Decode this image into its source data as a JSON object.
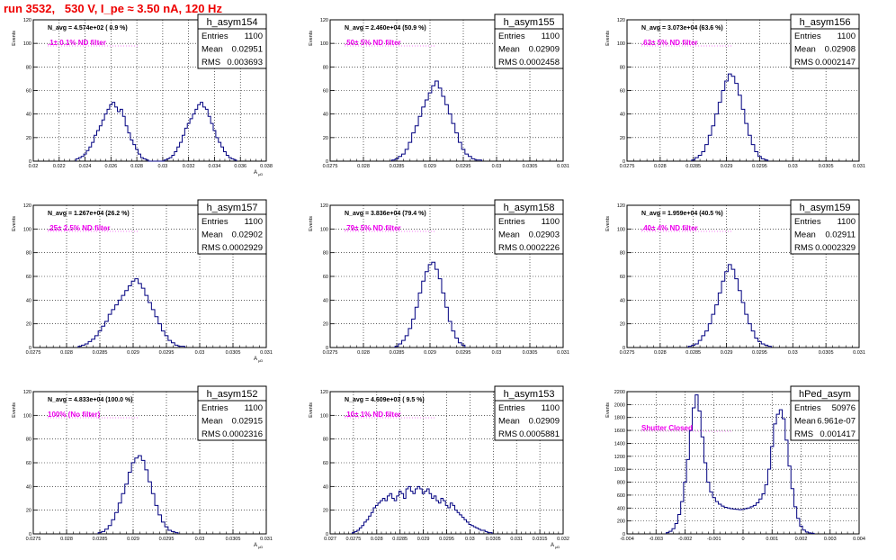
{
  "page_title": "run 3532,   530 V, I_pe ≈ 3.50 nA, 120 Hz",
  "colors": {
    "title": "#ee0000",
    "hist_line": "#000080",
    "annotation": "#ee00ee",
    "frame": "#000000",
    "grid": "#000000"
  },
  "stats_labels": {
    "entries": "Entries",
    "mean": "Mean",
    "rms": "RMS"
  },
  "chart_data": [
    {
      "type": "histogram",
      "name": "h_asym154",
      "navg": "N_avg = 4.574e+02 ( 0.9 %)",
      "annotation": ".1± 0.1% ND filter",
      "entries": "1100",
      "mean": "0.02951",
      "rms": "0.003693",
      "ylabel": "Events",
      "xlabel": "A_{μD}",
      "xlim": [
        0.02,
        0.038
      ],
      "ylim": [
        0,
        120
      ],
      "xticks": [
        0.02,
        0.022,
        0.024,
        0.026,
        0.028,
        0.03,
        0.032,
        0.034,
        0.036,
        0.038
      ],
      "xtick_labels": [
        "0.02",
        "0.022",
        "0.024",
        "0.026",
        "0.028",
        "0.03",
        "0.032",
        "0.034",
        "0.036",
        "0.038"
      ],
      "yticks": [
        0,
        20,
        40,
        60,
        80,
        100,
        120
      ],
      "ytick_labels": [
        "0",
        "20",
        "40",
        "60",
        "80",
        "100",
        "120"
      ],
      "bins": [
        0.0234,
        0.0236,
        0.0238,
        0.024,
        0.0242,
        0.0244,
        0.0246,
        0.0248,
        0.025,
        0.0252,
        0.0254,
        0.0256,
        0.0258,
        0.026,
        0.0262,
        0.0264,
        0.0266,
        0.0268,
        0.027,
        0.0272,
        0.0274,
        0.0276,
        0.0278,
        0.028,
        0.0282,
        0.0284,
        0.0286,
        0.0288,
        0.029,
        0.0292,
        0.0294,
        0.0296,
        0.0298,
        0.03,
        0.0302,
        0.0304,
        0.0306,
        0.0308,
        0.031,
        0.0312,
        0.0314,
        0.0316,
        0.0318,
        0.032,
        0.0322,
        0.0324,
        0.0326,
        0.0328,
        0.033,
        0.0332,
        0.0334,
        0.0336,
        0.0338,
        0.034,
        0.0342,
        0.0344,
        0.0346,
        0.0348,
        0.035,
        0.0352,
        0.0354,
        0.0356
      ],
      "counts": [
        2,
        3,
        4,
        6,
        9,
        12,
        16,
        22,
        26,
        30,
        35,
        40,
        44,
        48,
        50,
        46,
        42,
        44,
        38,
        30,
        24,
        18,
        14,
        10,
        6,
        3,
        2,
        1,
        0,
        0,
        0,
        0,
        0,
        0,
        1,
        2,
        3,
        5,
        8,
        12,
        16,
        22,
        28,
        32,
        36,
        40,
        44,
        48,
        50,
        46,
        44,
        38,
        32,
        26,
        20,
        16,
        12,
        8,
        5,
        3,
        2,
        1
      ]
    },
    {
      "type": "histogram",
      "name": "h_asym155",
      "navg": "N_avg = 2.460e+04 (50.9 %)",
      "annotation": ".50± 5% ND filter",
      "entries": "1100",
      "mean": "0.02909",
      "rms": "0.0002458",
      "ylabel": "Events",
      "xlabel": "",
      "xlim": [
        0.0275,
        0.031
      ],
      "ylim": [
        0,
        120
      ],
      "xticks": [
        0.0275,
        0.028,
        0.0285,
        0.029,
        0.0295,
        0.03,
        0.0305,
        0.031
      ],
      "xtick_labels": [
        "0.0275",
        "0.028",
        "0.0285",
        "0.029",
        "0.0295",
        "0.03",
        "0.0305",
        "0.031"
      ],
      "yticks": [
        0,
        20,
        40,
        60,
        80,
        100,
        120
      ],
      "ytick_labels": [
        "0",
        "20",
        "40",
        "60",
        "80",
        "100",
        "120"
      ],
      "bins": [
        0.02845,
        0.0285,
        0.02855,
        0.0286,
        0.02865,
        0.0287,
        0.02875,
        0.0288,
        0.02885,
        0.0289,
        0.02895,
        0.029,
        0.02905,
        0.0291,
        0.02915,
        0.0292,
        0.02925,
        0.0293,
        0.02935,
        0.0294,
        0.02945,
        0.0295,
        0.02955,
        0.0296,
        0.02965,
        0.0297,
        0.02975
      ],
      "counts": [
        1,
        2,
        4,
        6,
        10,
        16,
        24,
        30,
        38,
        46,
        52,
        58,
        64,
        68,
        62,
        55,
        48,
        40,
        32,
        24,
        16,
        10,
        6,
        4,
        2,
        1,
        1
      ]
    },
    {
      "type": "histogram",
      "name": "h_asym156",
      "navg": "N_avg = 3.073e+04 (63.6 %)",
      "annotation": ".63± 5% ND filter",
      "entries": "1100",
      "mean": "0.02908",
      "rms": "0.0002147",
      "ylabel": "Events",
      "xlabel": "",
      "xlim": [
        0.0275,
        0.031
      ],
      "ylim": [
        0,
        120
      ],
      "xticks": [
        0.0275,
        0.028,
        0.0285,
        0.029,
        0.0295,
        0.03,
        0.0305,
        0.031
      ],
      "xtick_labels": [
        "0.0275",
        "0.028",
        "0.0285",
        "0.029",
        "0.0295",
        "0.03",
        "0.0305",
        "0.031"
      ],
      "yticks": [
        0,
        20,
        40,
        60,
        80,
        100,
        120
      ],
      "ytick_labels": [
        "0",
        "20",
        "40",
        "60",
        "80",
        "100",
        "120"
      ],
      "bins": [
        0.0285,
        0.02855,
        0.0286,
        0.02865,
        0.0287,
        0.02875,
        0.0288,
        0.02885,
        0.0289,
        0.02895,
        0.029,
        0.02905,
        0.0291,
        0.02915,
        0.0292,
        0.02925,
        0.0293,
        0.02935,
        0.0294,
        0.02945,
        0.0295,
        0.02955,
        0.0296
      ],
      "counts": [
        1,
        3,
        5,
        8,
        14,
        22,
        30,
        40,
        50,
        60,
        68,
        74,
        72,
        66,
        56,
        44,
        32,
        22,
        14,
        8,
        4,
        2,
        1
      ]
    },
    {
      "type": "histogram",
      "name": "h_asym157",
      "navg": "N_avg = 1.267e+04 (26.2 %)",
      "annotation": ".25± 2.5% ND filter",
      "entries": "1100",
      "mean": "0.02902",
      "rms": "0.0002929",
      "ylabel": "Events",
      "xlabel": "A_{μD}",
      "xlim": [
        0.0275,
        0.031
      ],
      "ylim": [
        0,
        120
      ],
      "xticks": [
        0.0275,
        0.028,
        0.0285,
        0.029,
        0.0295,
        0.03,
        0.0305,
        0.031
      ],
      "xtick_labels": [
        "0.0275",
        "0.028",
        "0.0285",
        "0.029",
        "0.0295",
        "0.03",
        "0.0305",
        "0.031"
      ],
      "yticks": [
        0,
        20,
        40,
        60,
        80,
        100,
        120
      ],
      "ytick_labels": [
        "0",
        "20",
        "40",
        "60",
        "80",
        "100",
        "120"
      ],
      "bins": [
        0.0282,
        0.02825,
        0.0283,
        0.02835,
        0.0284,
        0.02845,
        0.0285,
        0.02855,
        0.0286,
        0.02865,
        0.0287,
        0.02875,
        0.0288,
        0.02885,
        0.0289,
        0.02895,
        0.029,
        0.02905,
        0.0291,
        0.02915,
        0.0292,
        0.02925,
        0.0293,
        0.02935,
        0.0294,
        0.02945,
        0.0295,
        0.02955,
        0.0296,
        0.02965,
        0.0297,
        0.02975
      ],
      "counts": [
        1,
        2,
        3,
        5,
        7,
        10,
        14,
        18,
        22,
        28,
        32,
        36,
        40,
        44,
        48,
        52,
        56,
        58,
        54,
        50,
        44,
        38,
        32,
        26,
        20,
        14,
        10,
        6,
        4,
        2,
        1,
        1
      ]
    },
    {
      "type": "histogram",
      "name": "h_asym158",
      "navg": "N_avg = 3.836e+04 (79.4 %)",
      "annotation": ".79± 5% ND filter",
      "entries": "1100",
      "mean": "0.02903",
      "rms": "0.0002226",
      "ylabel": "Events",
      "xlabel": "",
      "xlim": [
        0.0275,
        0.031
      ],
      "ylim": [
        0,
        120
      ],
      "xticks": [
        0.0275,
        0.028,
        0.0285,
        0.029,
        0.0295,
        0.03,
        0.0305,
        0.031
      ],
      "xtick_labels": [
        "0.0275",
        "0.028",
        "0.0285",
        "0.029",
        "0.0295",
        "0.03",
        "0.0305",
        "0.031"
      ],
      "yticks": [
        0,
        20,
        40,
        60,
        80,
        100,
        120
      ],
      "ytick_labels": [
        "0",
        "20",
        "40",
        "60",
        "80",
        "100",
        "120"
      ],
      "bins": [
        0.0285,
        0.02855,
        0.0286,
        0.02865,
        0.0287,
        0.02875,
        0.0288,
        0.02885,
        0.0289,
        0.02895,
        0.029,
        0.02905,
        0.0291,
        0.02915,
        0.0292,
        0.02925,
        0.0293,
        0.02935,
        0.0294,
        0.02945,
        0.0295
      ],
      "counts": [
        1,
        3,
        6,
        10,
        16,
        24,
        34,
        46,
        56,
        64,
        70,
        72,
        66,
        58,
        46,
        34,
        22,
        14,
        8,
        4,
        2
      ]
    },
    {
      "type": "histogram",
      "name": "h_asym159",
      "navg": "N_avg = 1.959e+04 (40.5 %)",
      "annotation": ".40± 4% ND filter",
      "entries": "1100",
      "mean": "0.02911",
      "rms": "0.0002329",
      "ylabel": "Events",
      "xlabel": "",
      "xlim": [
        0.0275,
        0.031
      ],
      "ylim": [
        0,
        120
      ],
      "xticks": [
        0.0275,
        0.028,
        0.0285,
        0.029,
        0.0295,
        0.03,
        0.0305,
        0.031
      ],
      "xtick_labels": [
        "0.0275",
        "0.028",
        "0.0285",
        "0.029",
        "0.0295",
        "0.03",
        "0.0305",
        "0.031"
      ],
      "yticks": [
        0,
        20,
        40,
        60,
        80,
        100,
        120
      ],
      "ytick_labels": [
        "0",
        "20",
        "40",
        "60",
        "80",
        "100",
        "120"
      ],
      "bins": [
        0.02845,
        0.0285,
        0.02855,
        0.0286,
        0.02865,
        0.0287,
        0.02875,
        0.0288,
        0.02885,
        0.0289,
        0.02895,
        0.029,
        0.02905,
        0.0291,
        0.02915,
        0.0292,
        0.02925,
        0.0293,
        0.02935,
        0.0294,
        0.02945,
        0.0295,
        0.02955,
        0.0296,
        0.02965
      ],
      "counts": [
        1,
        2,
        3,
        6,
        10,
        14,
        20,
        28,
        36,
        46,
        56,
        64,
        70,
        66,
        58,
        48,
        38,
        28,
        20,
        14,
        8,
        5,
        3,
        2,
        1
      ]
    },
    {
      "type": "histogram",
      "name": "h_asym152",
      "navg": "N_avg = 4.833e+04 (100.0 %)",
      "annotation": "100% (No filter)",
      "entries": "1100",
      "mean": "0.02915",
      "rms": "0.0002316",
      "ylabel": "Events",
      "xlabel": "A_{μD}",
      "xlim": [
        0.0275,
        0.031
      ],
      "ylim": [
        0,
        120
      ],
      "xticks": [
        0.0275,
        0.028,
        0.0285,
        0.029,
        0.0295,
        0.03,
        0.0305,
        0.031
      ],
      "xtick_labels": [
        "0.0275",
        "0.028",
        "0.0285",
        "0.029",
        "0.0295",
        "0.03",
        "0.0305",
        "0.031"
      ],
      "yticks": [
        0,
        20,
        40,
        60,
        80,
        100,
        120
      ],
      "ytick_labels": [
        "0",
        "20",
        "40",
        "60",
        "80",
        "100",
        "120"
      ],
      "bins": [
        0.0285,
        0.02855,
        0.0286,
        0.02865,
        0.0287,
        0.02875,
        0.0288,
        0.02885,
        0.0289,
        0.02895,
        0.029,
        0.02905,
        0.0291,
        0.02915,
        0.0292,
        0.02925,
        0.0293,
        0.02935,
        0.0294,
        0.02945,
        0.0295,
        0.02955,
        0.0296,
        0.02965
      ],
      "counts": [
        1,
        2,
        4,
        7,
        12,
        18,
        26,
        34,
        42,
        52,
        60,
        64,
        66,
        62,
        54,
        44,
        34,
        24,
        16,
        10,
        6,
        3,
        2,
        1
      ]
    },
    {
      "type": "histogram",
      "name": "h_asym153",
      "navg": "N_avg = 4.609e+03 ( 9.5 %)",
      "annotation": ".10± 1% ND filter",
      "entries": "1100",
      "mean": "0.02909",
      "rms": "0.0005881",
      "ylabel": "Events",
      "xlabel": "A_{μD}",
      "xlim": [
        0.027,
        0.032
      ],
      "ylim": [
        0,
        120
      ],
      "xticks": [
        0.027,
        0.0275,
        0.028,
        0.0285,
        0.029,
        0.0295,
        0.03,
        0.0305,
        0.031,
        0.0315,
        0.032
      ],
      "xtick_labels": [
        "0.027",
        "0.0275",
        "0.028",
        "0.0285",
        "0.029",
        "0.0295",
        "0.03",
        "0.0305",
        "0.031",
        "0.0315",
        "0.032"
      ],
      "yticks": [
        0,
        20,
        40,
        60,
        80,
        100,
        120
      ],
      "ytick_labels": [
        "0",
        "20",
        "40",
        "60",
        "80",
        "100",
        "120"
      ],
      "bins": [
        0.0275,
        0.02755,
        0.0276,
        0.02765,
        0.0277,
        0.02775,
        0.0278,
        0.02785,
        0.0279,
        0.02795,
        0.028,
        0.02805,
        0.0281,
        0.02815,
        0.0282,
        0.02825,
        0.0283,
        0.02835,
        0.0284,
        0.02845,
        0.0285,
        0.02855,
        0.0286,
        0.02865,
        0.0287,
        0.02875,
        0.0288,
        0.02885,
        0.0289,
        0.02895,
        0.029,
        0.02905,
        0.0291,
        0.02915,
        0.0292,
        0.02925,
        0.0293,
        0.02935,
        0.0294,
        0.02945,
        0.0295,
        0.02955,
        0.0296,
        0.02965,
        0.0297,
        0.02975,
        0.0298,
        0.02985,
        0.0299,
        0.02995,
        0.03,
        0.03005,
        0.0301,
        0.03015,
        0.0302,
        0.03025,
        0.0303,
        0.03035,
        0.0304,
        0.03045
      ],
      "counts": [
        1,
        2,
        3,
        5,
        7,
        10,
        12,
        15,
        18,
        22,
        24,
        26,
        28,
        30,
        28,
        32,
        34,
        30,
        28,
        32,
        36,
        34,
        30,
        38,
        40,
        36,
        34,
        38,
        40,
        38,
        34,
        36,
        38,
        34,
        30,
        32,
        28,
        26,
        30,
        28,
        24,
        22,
        26,
        24,
        20,
        18,
        16,
        14,
        12,
        10,
        8,
        7,
        6,
        5,
        4,
        3,
        3,
        2,
        1,
        1
      ]
    },
    {
      "type": "histogram",
      "name": "hPed_asym",
      "navg": "",
      "annotation": "Shutter Closed",
      "entries": "50976",
      "mean": "6.961e-07",
      "rms": "0.001417",
      "ylabel": "Events",
      "xlabel": "",
      "xlim": [
        -0.004,
        0.004
      ],
      "ylim": [
        0,
        2200
      ],
      "xticks": [
        -0.004,
        -0.003,
        -0.002,
        -0.001,
        0,
        0.001,
        0.002,
        0.003,
        0.004
      ],
      "xtick_labels": [
        "-0.004",
        "-0.003",
        "-0.002",
        "-0.001",
        "0",
        "0.001",
        "0.002",
        "0.003",
        "0.004"
      ],
      "yticks": [
        0,
        200,
        400,
        600,
        800,
        1000,
        1200,
        1400,
        1600,
        1800,
        2000,
        2200
      ],
      "ytick_labels": [
        "0",
        "200",
        "400",
        "600",
        "800",
        "1000",
        "1200",
        "1400",
        "1600",
        "1800",
        "2000",
        "2200"
      ],
      "bins": [
        -0.0026,
        -0.0025,
        -0.0024,
        -0.0023,
        -0.0022,
        -0.0021,
        -0.002,
        -0.0019,
        -0.0018,
        -0.0017,
        -0.0016,
        -0.0015,
        -0.0014,
        -0.0013,
        -0.0012,
        -0.0011,
        -0.001,
        -0.0009,
        -0.0008,
        -0.0007,
        -0.0006,
        -0.0005,
        -0.0004,
        -0.0003,
        -0.0002,
        -0.0001,
        0,
        0.0001,
        0.0002,
        0.0003,
        0.0004,
        0.0005,
        0.0006,
        0.0007,
        0.0008,
        0.0009,
        0.001,
        0.0011,
        0.0012,
        0.0013,
        0.0014,
        0.0015,
        0.0016,
        0.0017,
        0.0018,
        0.0019,
        0.002,
        0.0021,
        0.0022,
        0.0023,
        0.0024
      ],
      "counts": [
        20,
        40,
        80,
        160,
        300,
        500,
        800,
        1150,
        1600,
        1950,
        2150,
        1900,
        1500,
        1100,
        800,
        650,
        560,
        500,
        460,
        430,
        410,
        400,
        390,
        385,
        380,
        375,
        380,
        390,
        400,
        420,
        440,
        480,
        540,
        620,
        760,
        1000,
        1350,
        1700,
        1850,
        1920,
        1780,
        1450,
        1050,
        700,
        420,
        240,
        120,
        60,
        30,
        15,
        8
      ]
    }
  ]
}
